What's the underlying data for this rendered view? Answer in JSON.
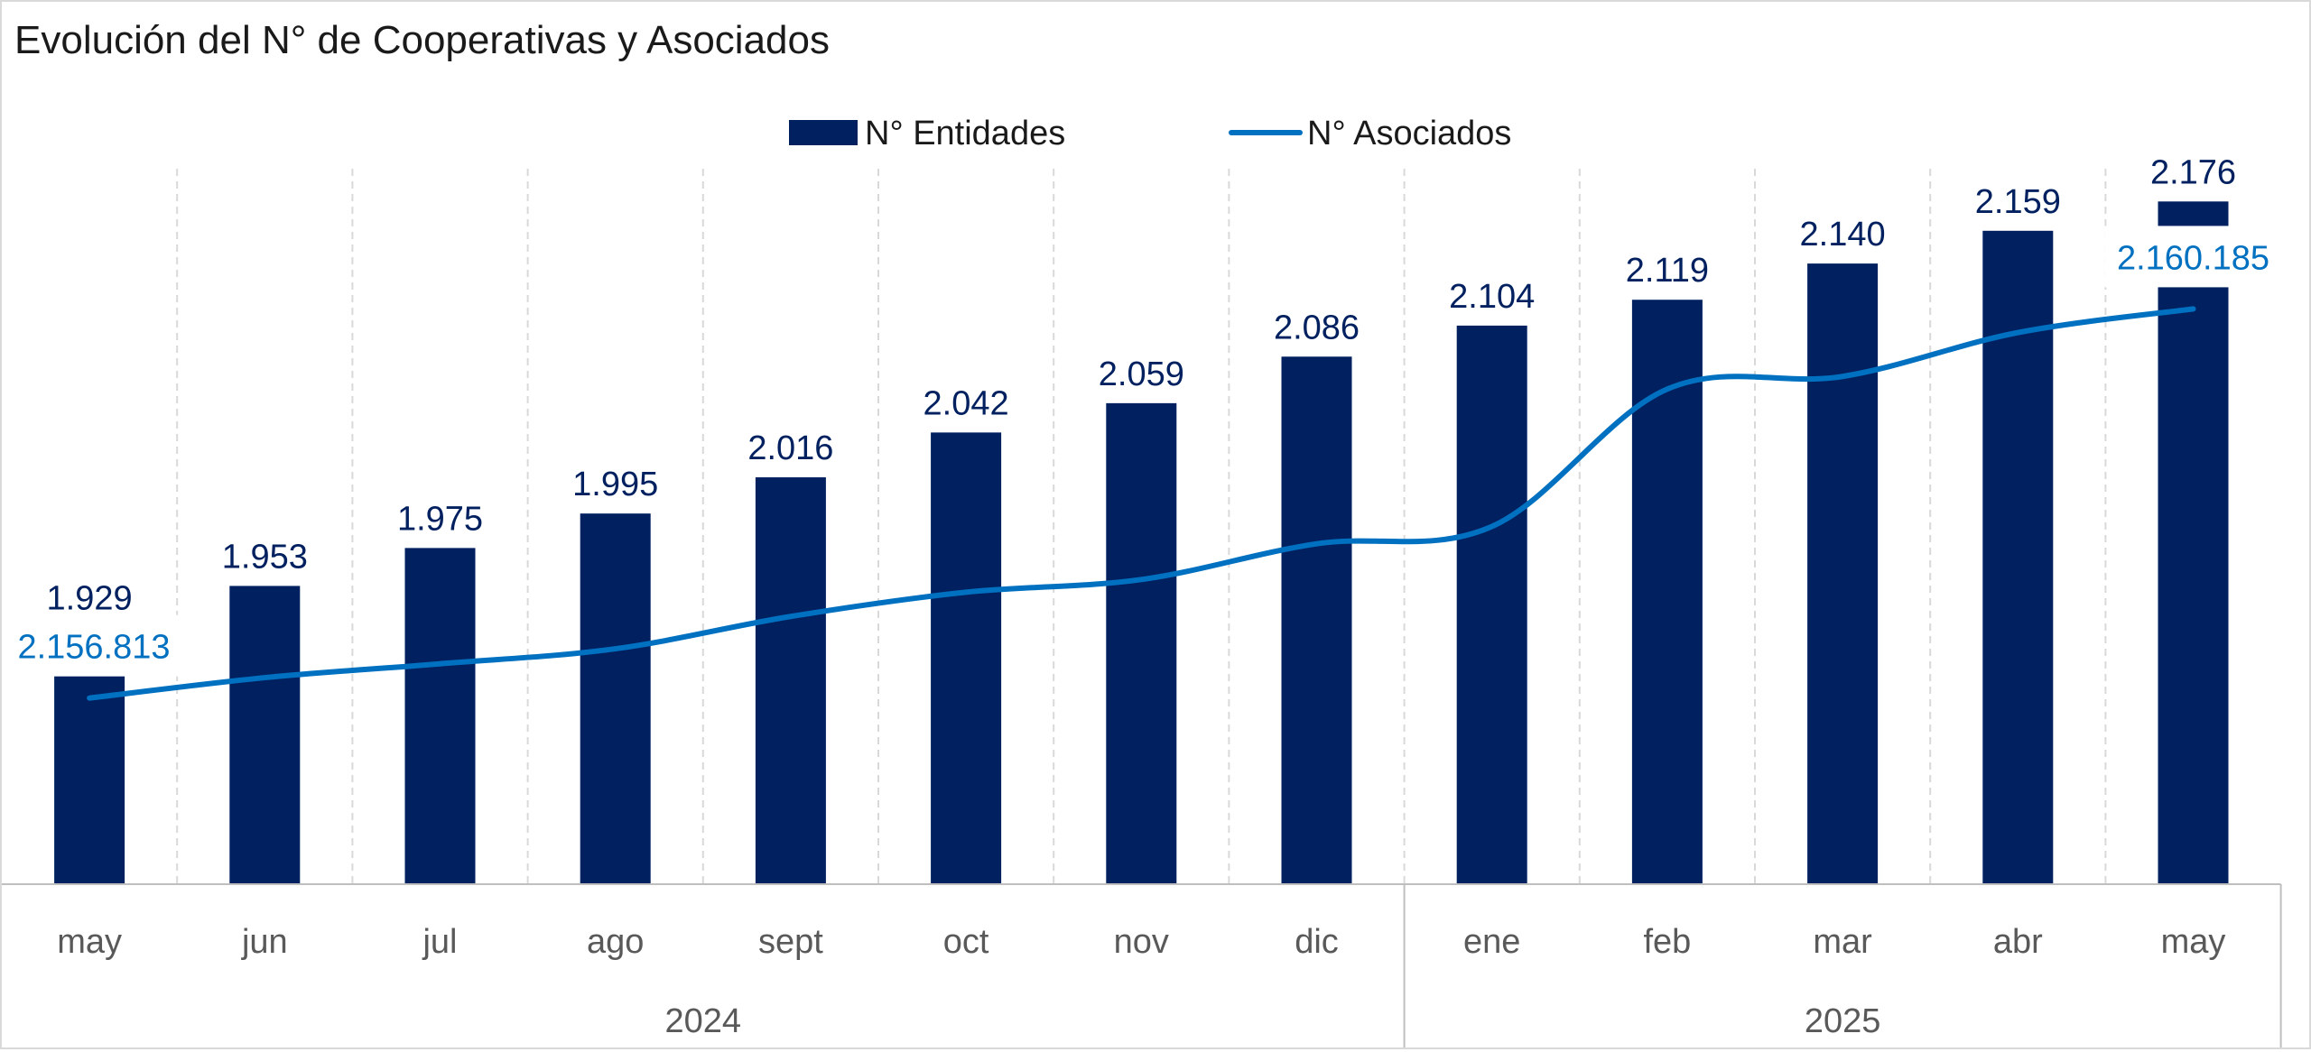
{
  "chart_data": {
    "type": "bar",
    "title": "Evolución del N° de Cooperativas y Asociados",
    "categories": [
      "may",
      "jun",
      "jul",
      "ago",
      "sept",
      "oct",
      "nov",
      "dic",
      "ene",
      "feb",
      "mar",
      "abr",
      "may"
    ],
    "groups": [
      {
        "label": "2024",
        "count": 8
      },
      {
        "label": "2025",
        "count": 5
      }
    ],
    "legend": {
      "position": "top-center",
      "bar_label": "N° Entidades",
      "line_label": "N° Asociados"
    },
    "series": [
      {
        "name": "N° Entidades",
        "type": "bar",
        "axis": "left",
        "values": [
          1929,
          1953,
          1975,
          1995,
          2016,
          2042,
          2059,
          2086,
          2104,
          2119,
          2140,
          2159,
          2176
        ],
        "labels": [
          "1.929",
          "1.953",
          "1.975",
          "1.995",
          "2.016",
          "2.042",
          "2.059",
          "2.086",
          "2.104",
          "2.119",
          "2.140",
          "2.159",
          "2.176"
        ]
      },
      {
        "name": "N° Asociados",
        "type": "line",
        "axis": "right",
        "smooth": true,
        "values": [
          2156813,
          2156990,
          2157110,
          2157240,
          2157520,
          2157730,
          2157840,
          2158150,
          2158300,
          2159490,
          2159600,
          2159980,
          2160185
        ],
        "endpoint_labels": [
          "2.156.813",
          "2.160.185"
        ]
      }
    ],
    "axes": {
      "left_range": [
        1780,
        2195
      ],
      "right_range": [
        2155200,
        2161400
      ],
      "grid": "vertical-dashed"
    },
    "colors": {
      "bar": "#002060",
      "line": "#0070C0",
      "grid": "#d9d9d9",
      "axis": "#bfbfbf",
      "tick_text": "#595959"
    }
  }
}
